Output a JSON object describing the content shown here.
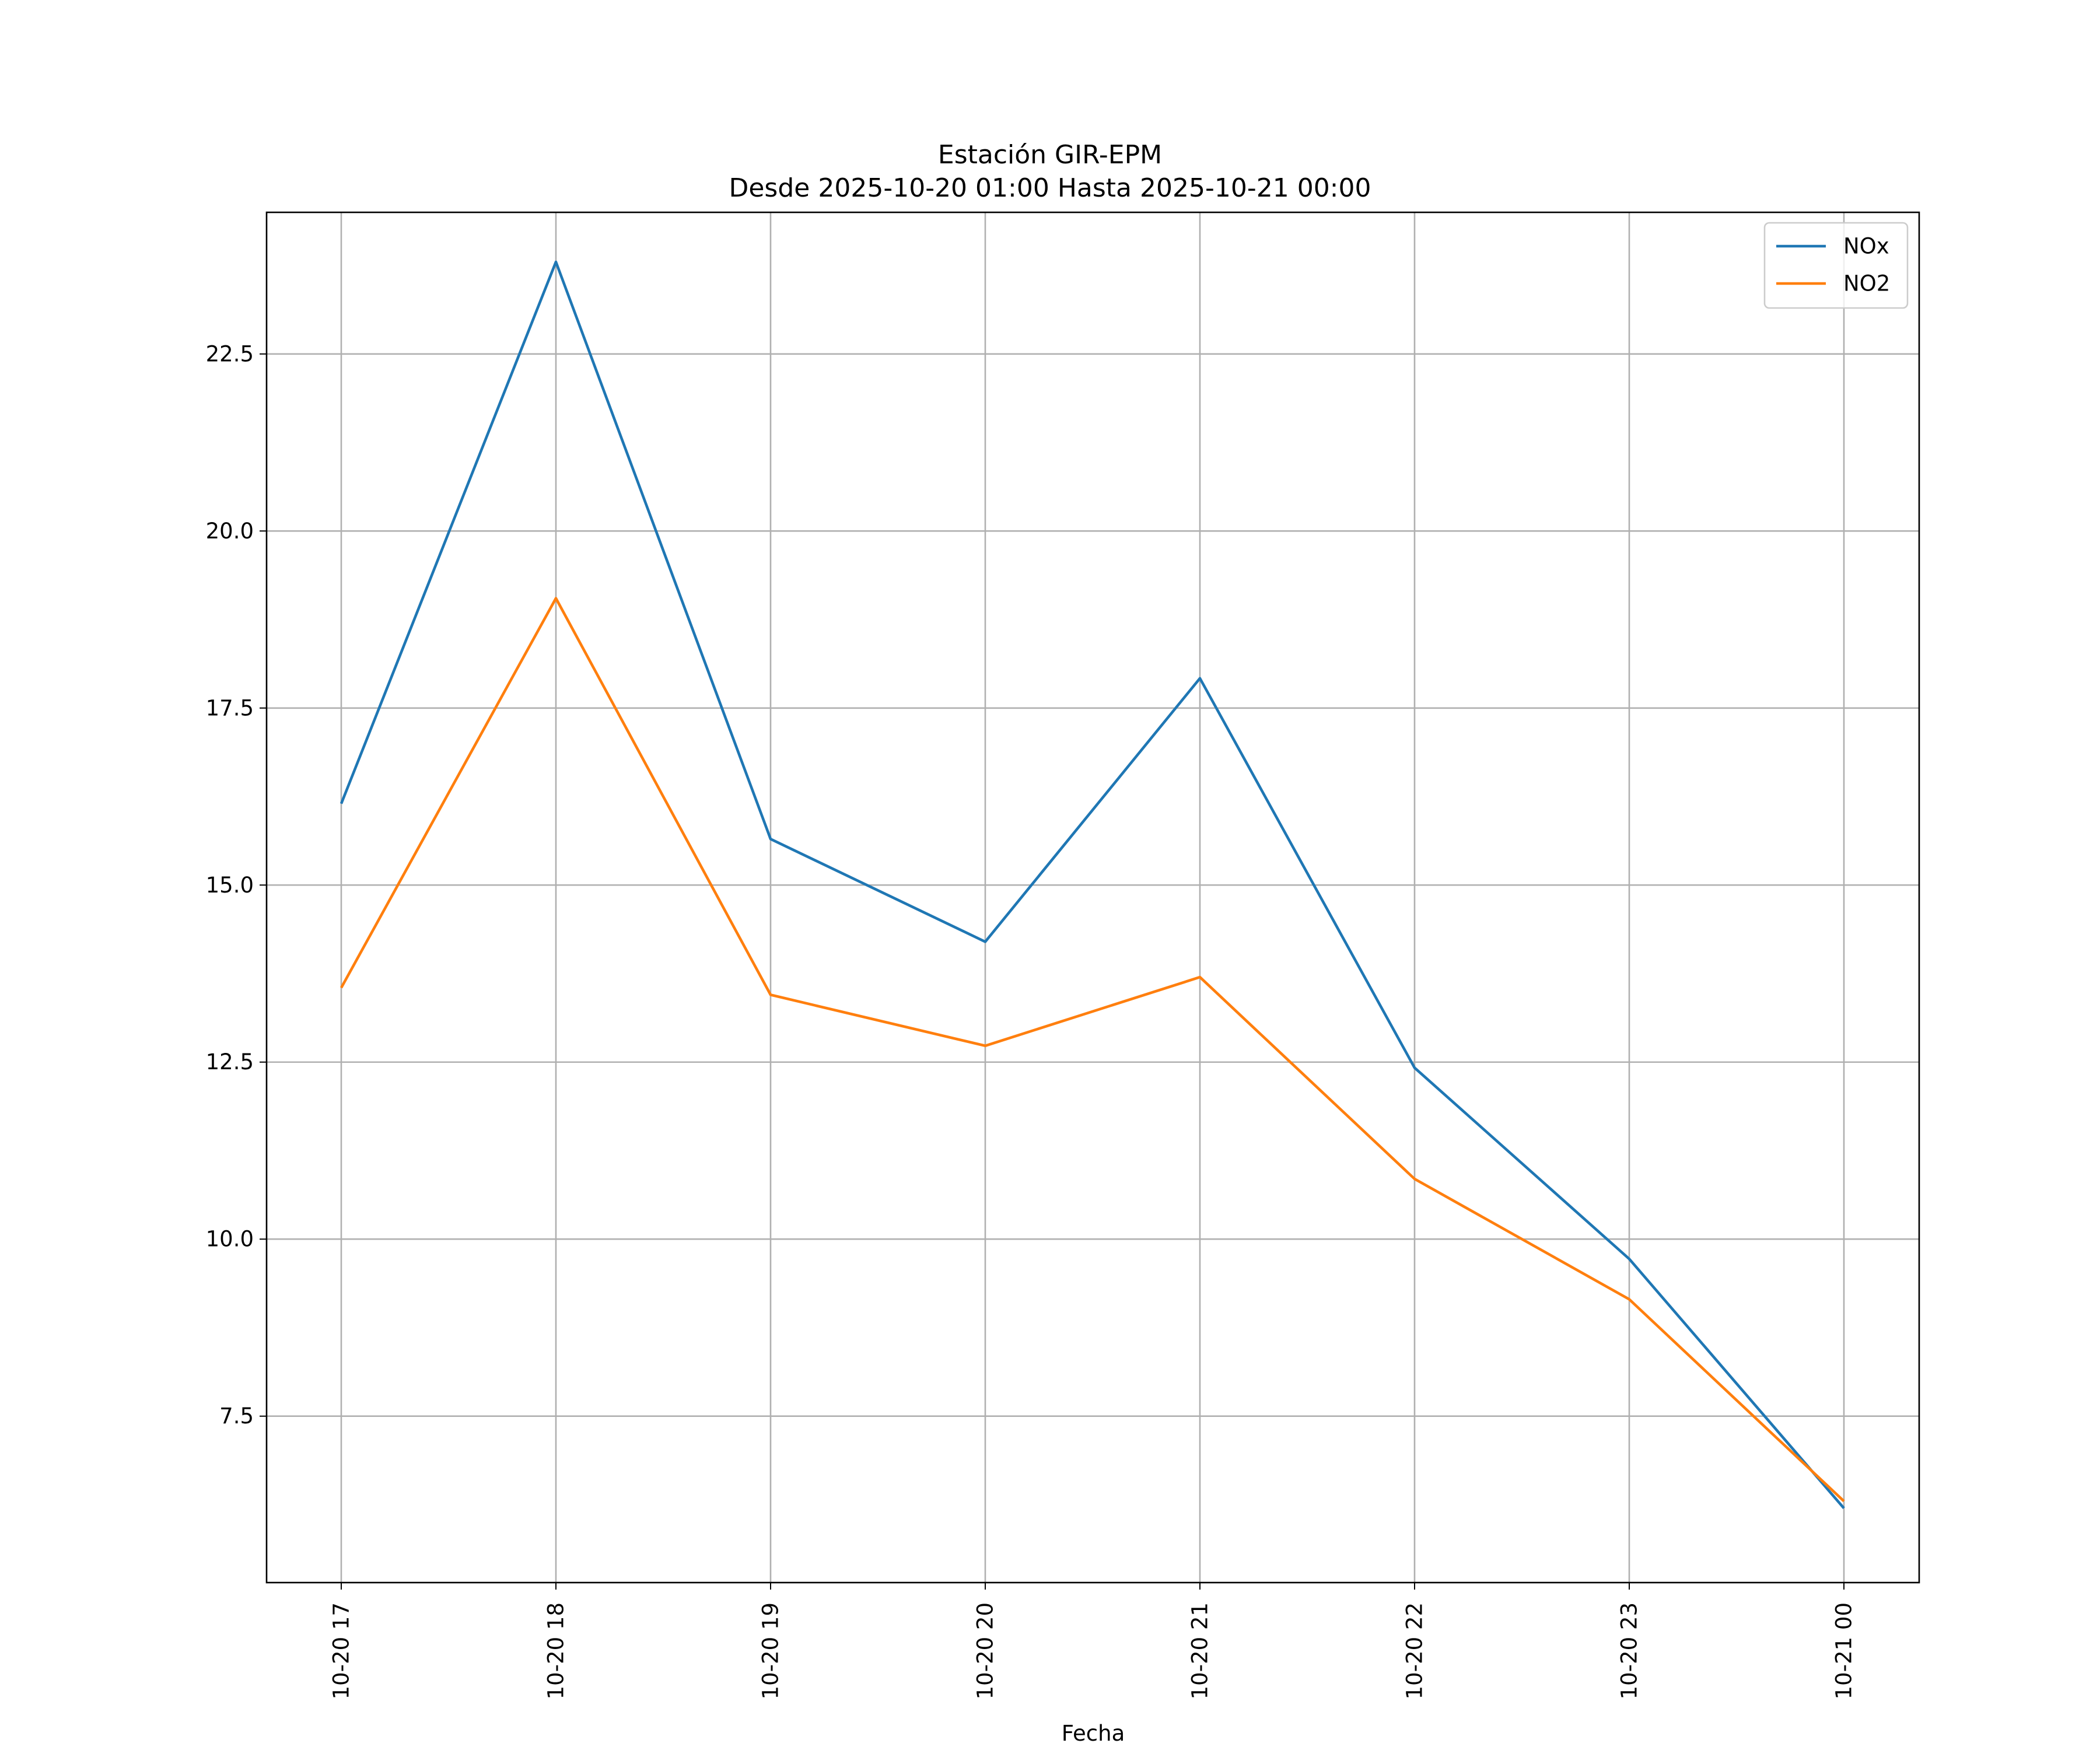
{
  "chart_data": {
    "type": "line",
    "title": "Estación GIR-EPM",
    "subtitle": "Desde 2025-10-20 01:00 Hasta 2025-10-21 00:00",
    "xlabel": "Fecha",
    "ylabel": "",
    "x": [
      "10-20 17",
      "10-20 18",
      "10-20 19",
      "10-20 20",
      "10-20 21",
      "10-20 22",
      "10-20 23",
      "10-21 00"
    ],
    "x_tick_labels": [
      "10-20 17",
      "10-20 18",
      "10-20 19",
      "10-20 20",
      "10-20 21",
      "10-20 22",
      "10-20 23",
      "10-21 00"
    ],
    "y_tick_labels": [
      "7.5",
      "10.0",
      "12.5",
      "15.0",
      "17.5",
      "20.0",
      "22.5"
    ],
    "y_ticks": [
      7.5,
      10.0,
      12.5,
      15.0,
      17.5,
      20.0,
      22.5
    ],
    "ylim": [
      5.15,
      24.5
    ],
    "grid": true,
    "legend_position": "top-right",
    "series": [
      {
        "name": "NOx",
        "color": "#1f77b4",
        "values": [
          16.15,
          23.8,
          15.65,
          14.2,
          17.92,
          12.42,
          9.72,
          6.2
        ]
      },
      {
        "name": "NO2",
        "color": "#ff7f0e",
        "values": [
          13.55,
          19.05,
          13.45,
          12.73,
          13.7,
          10.85,
          9.15,
          6.3
        ]
      }
    ]
  }
}
